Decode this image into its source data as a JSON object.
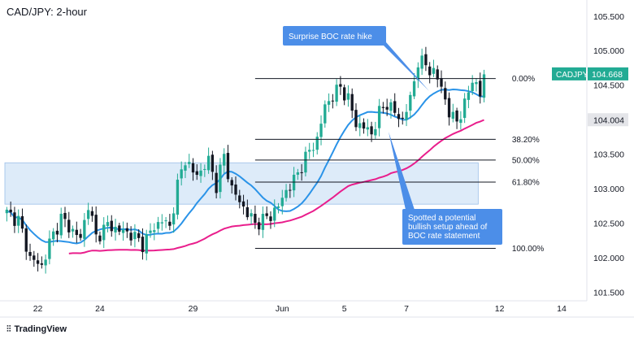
{
  "chart_data": {
    "type": "candlestick",
    "title": "CAD/JPY: 2-hour",
    "symbol": "CADJPY",
    "ylim": [
      101.38,
      105.68
    ],
    "y_ticks": [
      {
        "value": 105.5,
        "label": "105.500"
      },
      {
        "value": 105.0,
        "label": "105.000"
      },
      {
        "value": 104.5,
        "label": "104.500"
      },
      {
        "value": 103.5,
        "label": "103.500"
      },
      {
        "value": 103.0,
        "label": "103.000"
      },
      {
        "value": 102.5,
        "label": "102.500"
      },
      {
        "value": 102.0,
        "label": "102.000"
      },
      {
        "value": 101.5,
        "label": "101.500"
      }
    ],
    "x_ticks": [
      {
        "index": 8,
        "label": "22"
      },
      {
        "index": 24,
        "label": "24"
      },
      {
        "index": 48,
        "label": "29"
      },
      {
        "index": 71,
        "label": "Jun"
      },
      {
        "index": 87,
        "label": "5"
      },
      {
        "index": 103,
        "label": "7"
      },
      {
        "index": 127,
        "label": "12"
      },
      {
        "index": 143,
        "label": "14"
      }
    ],
    "last_price": {
      "value": 104.668,
      "label": "104.668",
      "color": "#22ab94"
    },
    "gray_price": {
      "value": 104.004,
      "label": "104.004"
    },
    "fib_levels": [
      {
        "label": "0.00%",
        "value": 104.6
      },
      {
        "label": "38.20%",
        "value": 103.72
      },
      {
        "label": "50.00%",
        "value": 103.42
      },
      {
        "label": "61.80%",
        "value": 103.1
      },
      {
        "label": "100.00%",
        "value": 102.14
      }
    ],
    "fib_start_index": 64,
    "fib_end_index": 126,
    "zone": {
      "top": 103.38,
      "bottom": 102.78,
      "start_index": 0,
      "end_index": 122,
      "color": "#cfe2f7"
    },
    "annotations": [
      {
        "text": "Surprise BOC rate hike",
        "color": "#4c8ee8"
      },
      {
        "text_lines": [
          "Spotted a potential",
          "bullish setup ahead of",
          "BOC rate statement"
        ],
        "color": "#4c8ee8"
      }
    ],
    "series": [
      {
        "name": "MA fast",
        "color": "#2a93e8"
      },
      {
        "name": "MA slow",
        "color": "#e91e8c"
      }
    ],
    "candle_colors": {
      "up": "#22ab94",
      "down": "#131722"
    },
    "keypoints": [
      [
        0,
        102.65
      ],
      [
        3,
        102.55
      ],
      [
        6,
        102.0
      ],
      [
        9,
        101.88
      ],
      [
        11,
        102.22
      ],
      [
        14,
        102.58
      ],
      [
        16,
        102.45
      ],
      [
        19,
        102.28
      ],
      [
        21,
        102.78
      ],
      [
        23,
        102.3
      ],
      [
        26,
        102.48
      ],
      [
        29,
        102.4
      ],
      [
        32,
        102.35
      ],
      [
        35,
        102.2
      ],
      [
        38,
        102.45
      ],
      [
        40,
        102.55
      ],
      [
        42,
        102.45
      ],
      [
        44,
        103.05
      ],
      [
        46,
        103.45
      ],
      [
        48,
        103.22
      ],
      [
        50,
        103.25
      ],
      [
        52,
        103.42
      ],
      [
        54,
        103.05
      ],
      [
        56,
        103.48
      ],
      [
        58,
        103.0
      ],
      [
        60,
        102.82
      ],
      [
        62,
        102.65
      ],
      [
        64,
        102.5
      ],
      [
        66,
        102.55
      ],
      [
        68,
        102.62
      ],
      [
        70,
        102.75
      ],
      [
        72,
        102.98
      ],
      [
        74,
        103.12
      ],
      [
        76,
        103.35
      ],
      [
        78,
        103.55
      ],
      [
        80,
        103.72
      ],
      [
        82,
        104.2
      ],
      [
        84,
        104.35
      ],
      [
        86,
        104.48
      ],
      [
        88,
        104.3
      ],
      [
        90,
        103.95
      ],
      [
        92,
        103.9
      ],
      [
        94,
        103.8
      ],
      [
        96,
        104.1
      ],
      [
        98,
        104.25
      ],
      [
        100,
        104.1
      ],
      [
        102,
        104.0
      ],
      [
        104,
        104.3
      ],
      [
        106,
        104.85
      ],
      [
        108,
        104.8
      ],
      [
        110,
        104.68
      ],
      [
        112,
        104.5
      ],
      [
        114,
        104.08
      ],
      [
        116,
        104.0
      ],
      [
        118,
        104.2
      ],
      [
        120,
        104.62
      ],
      [
        122,
        104.35
      ],
      [
        123,
        104.66
      ]
    ]
  },
  "legend": {
    "symbol_badge": "CADJPY"
  },
  "footer": {
    "brand": "TradingView"
  }
}
